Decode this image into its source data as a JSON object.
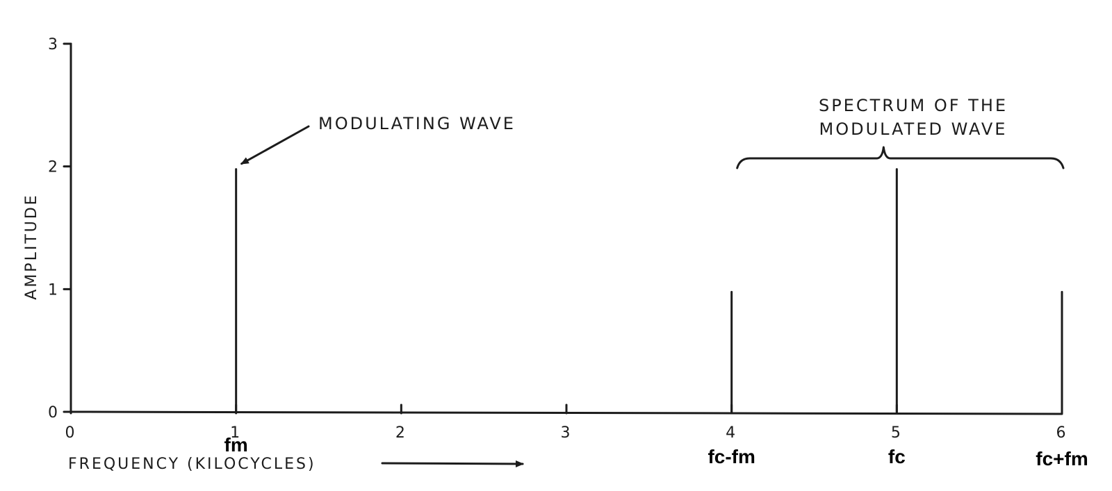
{
  "chart_data": {
    "type": "bar",
    "ylabel": "AMPLITUDE",
    "xlabel": "FREQUENCY (KILOCYCLES)",
    "xlim": [
      0,
      6
    ],
    "ylim": [
      0,
      3
    ],
    "x_ticks": [
      0,
      1,
      2,
      3,
      4,
      5,
      6
    ],
    "y_ticks": [
      0,
      1,
      2,
      3
    ],
    "grid": false,
    "series": [
      {
        "points": [
          {
            "x": 1,
            "y": 2,
            "label": "fm"
          }
        ]
      },
      {
        "points": [
          {
            "x": 4,
            "y": 1,
            "label": "fc-fm"
          },
          {
            "x": 5,
            "y": 2,
            "label": "fc"
          },
          {
            "x": 6,
            "y": 1,
            "label": "fc+fm"
          }
        ]
      }
    ],
    "annotations": [
      {
        "text": "MODULATING WAVE",
        "points_to_x": 1
      },
      {
        "text_lines": [
          "SPECTRUM OF THE",
          "MODULATED WAVE"
        ],
        "brace_from_x": 4,
        "brace_to_x": 6
      }
    ]
  }
}
